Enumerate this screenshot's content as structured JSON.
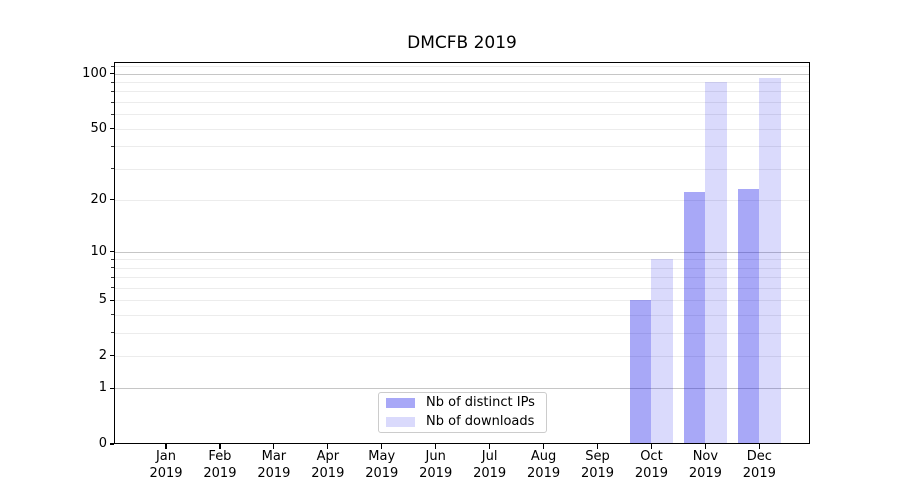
{
  "title": "DMCFB 2019",
  "chart_data": {
    "type": "bar",
    "title": "DMCFB 2019",
    "x_months": [
      "Jan",
      "Feb",
      "Mar",
      "Apr",
      "May",
      "Jun",
      "Jul",
      "Aug",
      "Sep",
      "Oct",
      "Nov",
      "Dec"
    ],
    "x_year": "2019",
    "series": [
      {
        "name": "Nb of distinct IPs",
        "color": "rgba(5,5,232,0.35)",
        "color_solid": "#a6a6f5",
        "values": [
          0,
          0,
          0,
          0,
          0,
          0,
          0,
          0,
          0,
          5,
          22,
          23
        ]
      },
      {
        "name": "Nb of downloads",
        "color": "rgba(5,5,232,0.15)",
        "color_solid": "#dcdcfa",
        "values": [
          0,
          0,
          0,
          0,
          0,
          0,
          0,
          0,
          0,
          9,
          90,
          95
        ]
      }
    ],
    "yscale": "symlog (log(1+y))",
    "ylim": [
      0,
      116
    ],
    "yticks_labeled": [
      0,
      1,
      2,
      5,
      10,
      20,
      50,
      100
    ],
    "yticks_decade": [
      1,
      10,
      100
    ],
    "yticks_minor": [
      3,
      4,
      6,
      7,
      8,
      9,
      30,
      40,
      60,
      70,
      80,
      90,
      110
    ],
    "grid": "horizontal; decade lines darker, minor lines faint",
    "legend_position": "lower center",
    "colors": {
      "grid_major": "#c6c6c6",
      "grid_minor": "#ececec",
      "axes": "#000000",
      "background": "#ffffff"
    }
  },
  "legend": {
    "items": [
      {
        "label": "Nb of distinct IPs"
      },
      {
        "label": "Nb of downloads"
      }
    ]
  }
}
